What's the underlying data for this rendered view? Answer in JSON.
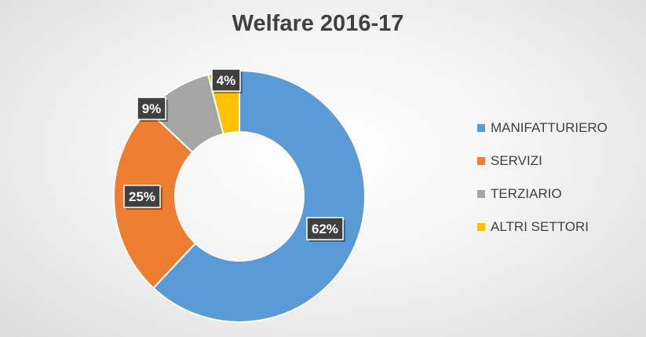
{
  "colors": {
    "manifatturiero": "#5B9BD5",
    "servizi": "#ED7D31",
    "terziario": "#A5A5A5",
    "altri_settori": "#FFC000",
    "label_box": "#404040",
    "label_text": "#FFFFFF"
  },
  "chart_data": {
    "type": "pie",
    "title": "Welfare 2016-17",
    "donut": true,
    "legend_position": "right",
    "slices": [
      {
        "name": "MANIFATTURIERO",
        "value": 62,
        "label": "62%",
        "color": "#5B9BD5"
      },
      {
        "name": "SERVIZI",
        "value": 25,
        "label": "25%",
        "color": "#ED7D31"
      },
      {
        "name": "TERZIARIO",
        "value": 9,
        "label": "9%",
        "color": "#A5A5A5"
      },
      {
        "name": "ALTRI SETTORI",
        "value": 4,
        "label": "4%",
        "color": "#FFC000"
      }
    ]
  }
}
